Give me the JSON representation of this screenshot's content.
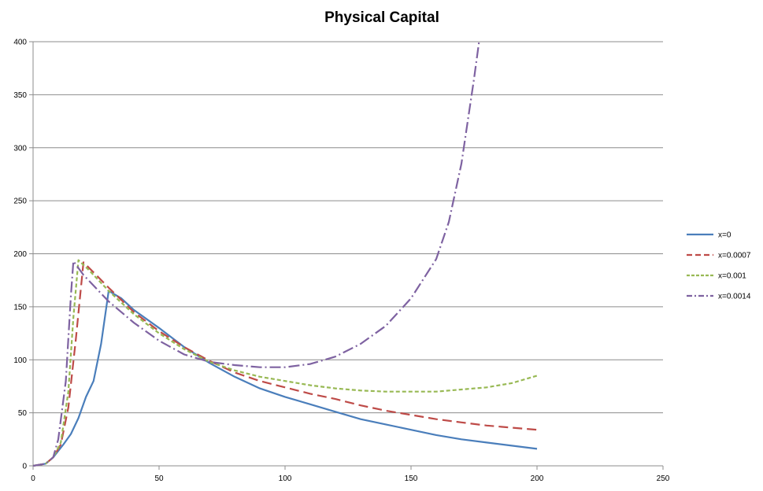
{
  "chart_data": {
    "type": "line",
    "title": "Physical Capital",
    "xlabel": "",
    "ylabel": "",
    "xlim": [
      0,
      250
    ],
    "ylim": [
      0,
      400
    ],
    "x_ticks": [
      0,
      50,
      100,
      150,
      200,
      250
    ],
    "y_ticks": [
      0,
      50,
      100,
      150,
      200,
      250,
      300,
      350,
      400
    ],
    "grid": "horizontal",
    "legend_position": "right",
    "series": [
      {
        "name": "x=0",
        "color": "#4a7ebb",
        "dash": "solid",
        "points": [
          [
            0,
            0
          ],
          [
            5,
            2
          ],
          [
            8,
            8
          ],
          [
            12,
            20
          ],
          [
            15,
            30
          ],
          [
            18,
            45
          ],
          [
            21,
            65
          ],
          [
            24,
            80
          ],
          [
            27,
            115
          ],
          [
            30,
            165
          ],
          [
            35,
            158
          ],
          [
            40,
            147
          ],
          [
            50,
            130
          ],
          [
            60,
            112
          ],
          [
            70,
            97
          ],
          [
            80,
            84
          ],
          [
            90,
            73
          ],
          [
            100,
            65
          ],
          [
            110,
            58
          ],
          [
            120,
            51
          ],
          [
            130,
            44
          ],
          [
            140,
            39
          ],
          [
            150,
            34
          ],
          [
            160,
            29
          ],
          [
            170,
            25
          ],
          [
            180,
            22
          ],
          [
            190,
            19
          ],
          [
            200,
            16
          ]
        ]
      },
      {
        "name": "x=0.0007",
        "color": "#be4b48",
        "dash": "long-dash",
        "points": [
          [
            0,
            0
          ],
          [
            5,
            2
          ],
          [
            8,
            8
          ],
          [
            11,
            20
          ],
          [
            14,
            55
          ],
          [
            17,
            120
          ],
          [
            20,
            192
          ],
          [
            25,
            180
          ],
          [
            30,
            168
          ],
          [
            40,
            145
          ],
          [
            50,
            127
          ],
          [
            60,
            112
          ],
          [
            70,
            99
          ],
          [
            80,
            88
          ],
          [
            90,
            80
          ],
          [
            100,
            74
          ],
          [
            110,
            68
          ],
          [
            120,
            63
          ],
          [
            130,
            57
          ],
          [
            140,
            52
          ],
          [
            150,
            48
          ],
          [
            160,
            44
          ],
          [
            170,
            41
          ],
          [
            180,
            38
          ],
          [
            190,
            36
          ],
          [
            200,
            34
          ]
        ]
      },
      {
        "name": "x=0.001",
        "color": "#98b954",
        "dash": "short-dash",
        "points": [
          [
            0,
            0
          ],
          [
            5,
            2
          ],
          [
            8,
            8
          ],
          [
            11,
            22
          ],
          [
            14,
            70
          ],
          [
            16,
            140
          ],
          [
            18,
            194
          ],
          [
            22,
            185
          ],
          [
            30,
            165
          ],
          [
            40,
            143
          ],
          [
            50,
            125
          ],
          [
            60,
            110
          ],
          [
            70,
            98
          ],
          [
            80,
            90
          ],
          [
            90,
            84
          ],
          [
            100,
            80
          ],
          [
            110,
            76
          ],
          [
            120,
            73
          ],
          [
            130,
            71
          ],
          [
            140,
            70
          ],
          [
            150,
            70
          ],
          [
            160,
            70
          ],
          [
            170,
            72
          ],
          [
            180,
            74
          ],
          [
            190,
            78
          ],
          [
            200,
            85
          ]
        ]
      },
      {
        "name": "x=0.0014",
        "color": "#7e62a1",
        "dash": "dash-dot",
        "points": [
          [
            0,
            0
          ],
          [
            5,
            2
          ],
          [
            8,
            8
          ],
          [
            10,
            25
          ],
          [
            13,
            80
          ],
          [
            15,
            160
          ],
          [
            16,
            193
          ],
          [
            20,
            180
          ],
          [
            30,
            155
          ],
          [
            40,
            135
          ],
          [
            50,
            118
          ],
          [
            60,
            105
          ],
          [
            70,
            98
          ],
          [
            80,
            95
          ],
          [
            90,
            93
          ],
          [
            100,
            93
          ],
          [
            110,
            96
          ],
          [
            120,
            103
          ],
          [
            130,
            115
          ],
          [
            140,
            132
          ],
          [
            150,
            158
          ],
          [
            160,
            195
          ],
          [
            165,
            230
          ],
          [
            170,
            285
          ],
          [
            175,
            365
          ],
          [
            177,
            400
          ]
        ]
      }
    ]
  }
}
